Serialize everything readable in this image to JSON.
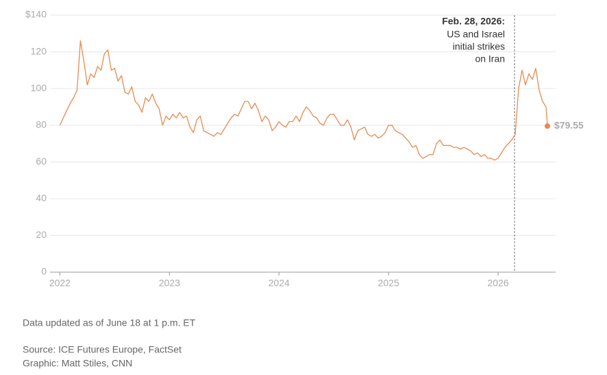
{
  "chart_data": {
    "type": "line",
    "color": "#e8894f",
    "x": [
      2022,
      2022.03125,
      2022.0625,
      2022.09375,
      2022.125,
      2022.15625,
      2022.1875,
      2022.21875,
      2022.25,
      2022.28125,
      2022.3125,
      2022.34375,
      2022.375,
      2022.40625,
      2022.4375,
      2022.46875,
      2022.5,
      2022.53125,
      2022.5625,
      2022.59375,
      2022.625,
      2022.65625,
      2022.6875,
      2022.71875,
      2022.75,
      2022.78125,
      2022.8125,
      2022.84375,
      2022.875,
      2022.90625,
      2022.9375,
      2022.96875,
      2023,
      2023.03125,
      2023.0625,
      2023.09375,
      2023.125,
      2023.15625,
      2023.1875,
      2023.21875,
      2023.25,
      2023.28125,
      2023.3125,
      2023.34375,
      2023.375,
      2023.40625,
      2023.4375,
      2023.46875,
      2023.5,
      2023.53125,
      2023.5625,
      2023.59375,
      2023.625,
      2023.65625,
      2023.6875,
      2023.71875,
      2023.75,
      2023.78125,
      2023.8125,
      2023.84375,
      2023.875,
      2023.90625,
      2023.9375,
      2023.96875,
      2024,
      2024.03125,
      2024.0625,
      2024.09375,
      2024.125,
      2024.15625,
      2024.1875,
      2024.21875,
      2024.25,
      2024.28125,
      2024.3125,
      2024.34375,
      2024.375,
      2024.40625,
      2024.4375,
      2024.46875,
      2024.5,
      2024.53125,
      2024.5625,
      2024.59375,
      2024.625,
      2024.65625,
      2024.6875,
      2024.71875,
      2024.75,
      2024.78125,
      2024.8125,
      2024.84375,
      2024.875,
      2024.90625,
      2024.9375,
      2024.96875,
      2025,
      2025.03125,
      2025.0625,
      2025.09375,
      2025.125,
      2025.15625,
      2025.1875,
      2025.21875,
      2025.25,
      2025.28125,
      2025.3125,
      2025.34375,
      2025.375,
      2025.40625,
      2025.4375,
      2025.46875,
      2025.5,
      2025.53125,
      2025.5625,
      2025.59375,
      2025.625,
      2025.65625,
      2025.6875,
      2025.71875,
      2025.75,
      2025.78125,
      2025.8125,
      2025.84375,
      2025.875,
      2025.90625,
      2025.9375,
      2025.96875,
      2026,
      2026.03125,
      2026.0625,
      2026.09375,
      2026.125,
      2026.15625,
      2026.1875,
      2026.21875,
      2026.25,
      2026.28125,
      2026.3125,
      2026.34375,
      2026.375,
      2026.40625,
      2026.4375,
      2026.45
    ],
    "values": [
      80,
      84,
      88,
      92,
      95,
      99,
      126,
      115,
      102,
      108,
      106,
      112,
      110,
      119,
      121,
      110,
      111,
      104,
      107,
      98,
      97,
      101,
      93,
      91,
      87,
      95,
      93,
      97,
      92,
      89,
      80,
      85,
      83,
      86,
      84,
      87,
      84,
      85,
      79,
      76,
      83,
      85,
      77,
      76,
      75,
      74,
      76,
      75,
      78,
      81,
      84,
      86,
      85,
      89,
      93,
      93,
      89,
      92,
      88,
      82,
      85,
      83,
      77,
      79,
      82,
      80,
      79,
      82,
      82,
      85,
      82,
      87,
      90,
      88,
      85,
      84,
      81,
      80,
      84,
      86,
      86,
      83,
      80,
      80,
      83,
      79,
      72,
      77,
      78,
      79,
      75,
      74,
      75,
      73,
      74,
      76,
      80,
      80,
      77,
      76,
      75,
      73,
      71,
      68,
      69,
      64,
      62,
      63,
      64,
      64,
      70,
      72,
      69,
      69,
      69,
      68,
      68,
      67,
      68,
      67,
      66,
      64,
      65,
      63,
      64,
      62,
      62,
      61,
      62,
      65,
      68,
      70,
      72,
      75,
      100,
      110,
      102,
      108,
      105,
      111,
      99,
      93,
      90,
      79.55
    ],
    "value_labels": [
      null,
      null,
      null,
      null,
      null,
      null,
      null,
      null,
      null,
      null,
      null,
      null,
      null,
      null,
      null,
      null,
      null,
      null,
      null,
      null,
      null,
      null,
      null,
      null,
      null,
      null,
      null,
      null,
      null,
      null,
      null,
      null,
      null,
      null,
      null,
      null,
      null,
      null,
      null,
      null,
      null,
      null,
      null,
      null,
      null,
      null,
      null,
      null,
      null,
      null,
      null,
      null,
      null,
      null,
      null,
      null,
      null,
      null,
      null,
      null,
      null,
      null,
      null,
      null,
      null,
      null,
      null,
      null,
      null,
      null,
      null,
      null,
      null,
      null,
      null,
      null,
      null,
      null,
      null,
      null,
      null,
      null,
      null,
      null,
      null,
      null,
      null,
      null,
      null,
      null,
      null,
      null,
      null,
      null,
      null,
      null,
      null,
      null,
      null,
      null,
      null,
      null,
      null,
      null,
      null,
      null,
      null,
      null,
      null,
      null,
      null,
      null,
      null,
      null,
      null,
      null,
      null,
      null,
      null,
      null,
      null,
      null,
      null,
      null,
      null,
      null,
      null,
      null,
      null,
      null,
      null,
      null,
      null,
      null,
      null,
      null,
      null,
      null,
      null,
      null,
      null,
      null,
      null,
      "$79.55"
    ],
    "xlim": [
      2021.91,
      2026.525
    ],
    "xticks": [
      2022,
      2023,
      2024,
      2025,
      2026
    ],
    "ylim": [
      0,
      140
    ],
    "yticks": [
      0,
      20,
      40,
      60,
      80,
      100,
      120,
      {
        "value": 140,
        "label": "$140"
      }
    ],
    "grid": true,
    "annotation": {
      "x": 2026.15,
      "title": "Feb. 28, 2026:",
      "lines": [
        "US and Israel",
        "initial strikes",
        "on Iran"
      ]
    },
    "notes": [
      "Data updated as of June 18 at 1 p.m. ET",
      "Source: ICE Futures Europe, FactSet",
      "Graphic: Matt Stiles, CNN"
    ]
  }
}
